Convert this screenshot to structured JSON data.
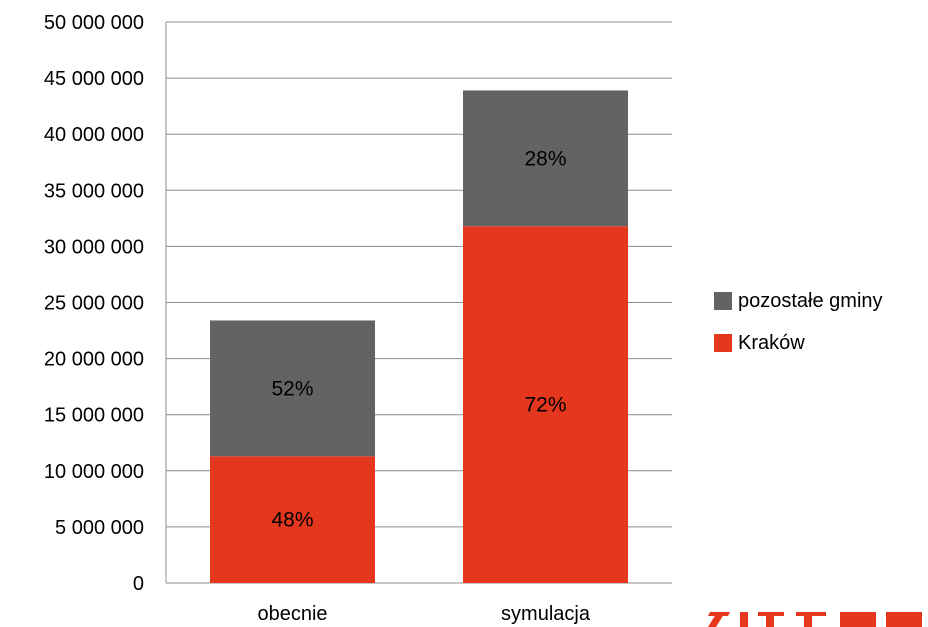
{
  "chart_data": {
    "type": "bar",
    "stacked": true,
    "categories": [
      "obecnie",
      "symulacja"
    ],
    "series": [
      {
        "name": "Kraków",
        "color": "#e4371d",
        "values": [
          11300000,
          31800000
        ],
        "labels": [
          "48%",
          "72%"
        ]
      },
      {
        "name": "pozostałe gminy",
        "color": "#636366",
        "values": [
          12100000,
          12100000
        ],
        "labels": [
          "52%",
          "28%"
        ]
      }
    ],
    "yticks": [
      "0",
      "5 000 000",
      "10 000 000",
      "15 000 000",
      "20 000 000",
      "25 000 000",
      "30 000 000",
      "35 000 000",
      "40 000 000",
      "45 000 000",
      "50 000 000"
    ],
    "ylim": [
      0,
      50000000
    ],
    "grid": true,
    "legend_position": "right"
  },
  "legend": {
    "items": [
      {
        "label": "pozostałe gminy",
        "color": "#636366"
      },
      {
        "label": "Kraków",
        "color": "#e4371d"
      }
    ]
  },
  "logo": {
    "color": "#e4371d",
    "icon": "logo-fragment"
  }
}
